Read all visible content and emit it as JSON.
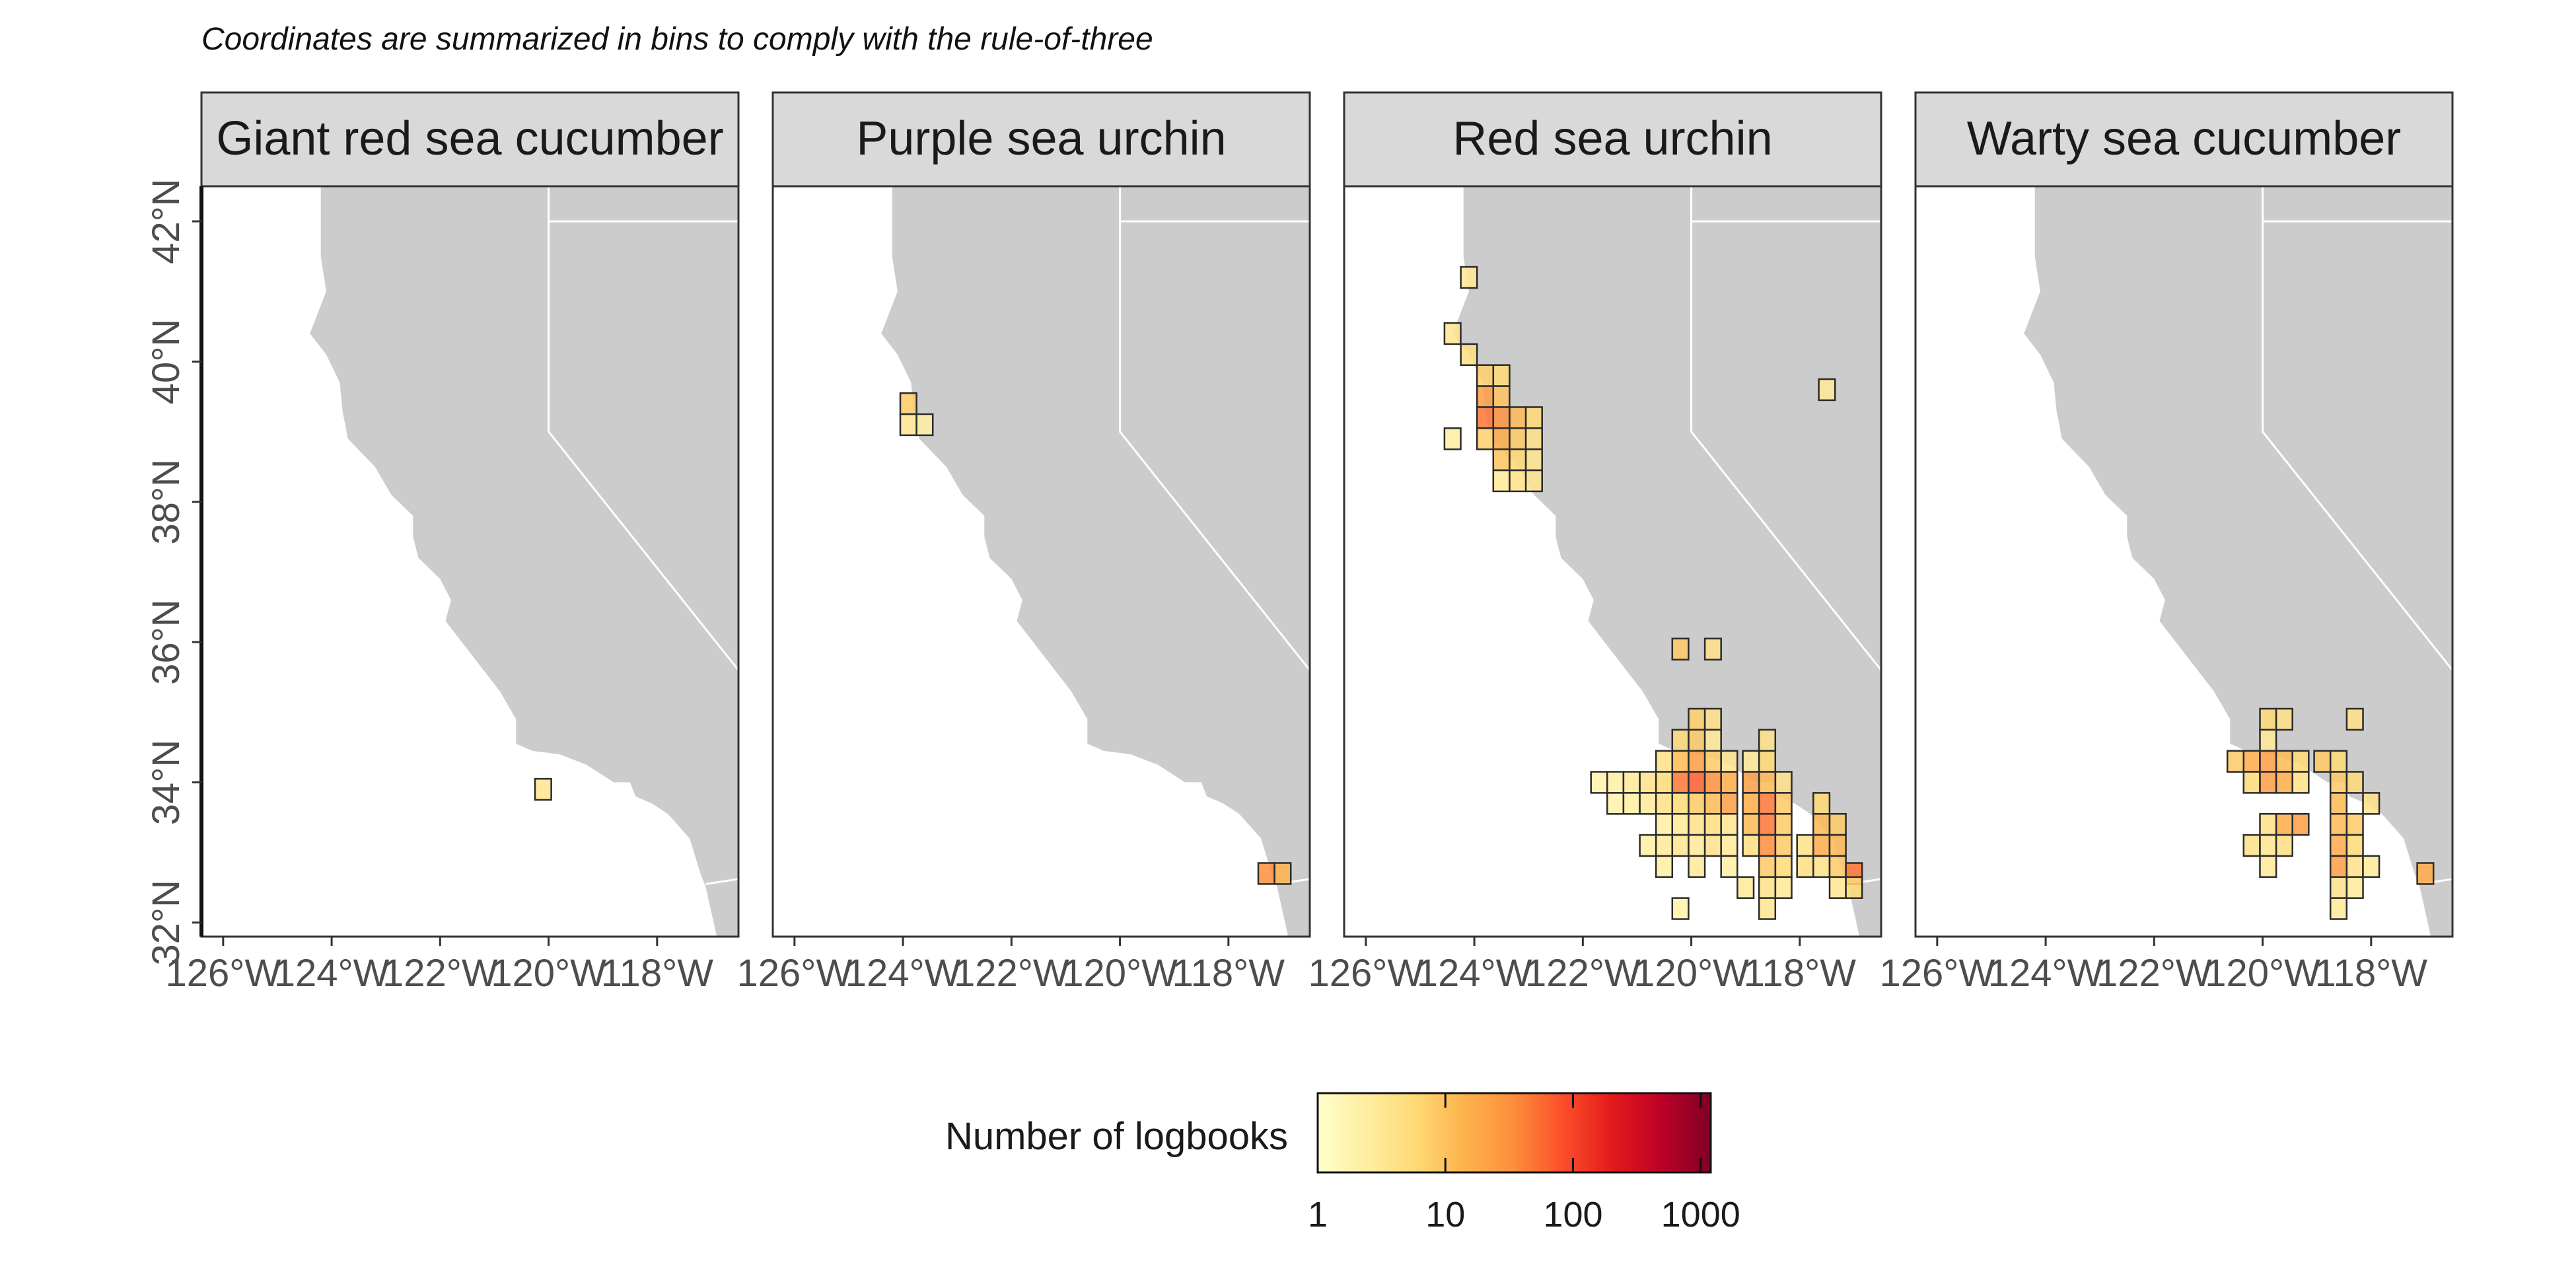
{
  "caption": "Coordinates are summarized in bins to comply with the rule-of-three",
  "panels": [
    {
      "title": "Giant red sea cucumber",
      "cells": [
        {
          "lon": -120.1,
          "lat": 33.9,
          "level": 0.18
        }
      ]
    },
    {
      "title": "Purple sea urchin",
      "cells": [
        {
          "lon": -123.9,
          "lat": 39.4,
          "level": 0.3
        },
        {
          "lon": -123.9,
          "lat": 39.1,
          "level": 0.18
        },
        {
          "lon": -123.6,
          "lat": 39.1,
          "level": 0.12
        },
        {
          "lon": -117.3,
          "lat": 32.7,
          "level": 0.5
        },
        {
          "lon": -117.0,
          "lat": 32.7,
          "level": 0.38
        }
      ]
    },
    {
      "title": "Red sea urchin",
      "cells": [
        {
          "lon": -124.1,
          "lat": 41.2,
          "level": 0.16
        },
        {
          "lon": -124.4,
          "lat": 40.4,
          "level": 0.18
        },
        {
          "lon": -124.1,
          "lat": 40.1,
          "level": 0.22
        },
        {
          "lon": -123.8,
          "lat": 39.8,
          "level": 0.28
        },
        {
          "lon": -123.5,
          "lat": 39.8,
          "level": 0.25
        },
        {
          "lon": -123.8,
          "lat": 39.5,
          "level": 0.45
        },
        {
          "lon": -123.5,
          "lat": 39.5,
          "level": 0.32
        },
        {
          "lon": -123.8,
          "lat": 39.2,
          "level": 0.55
        },
        {
          "lon": -123.5,
          "lat": 39.2,
          "level": 0.48
        },
        {
          "lon": -123.2,
          "lat": 39.2,
          "level": 0.35
        },
        {
          "lon": -122.9,
          "lat": 39.2,
          "level": 0.25
        },
        {
          "lon": -123.5,
          "lat": 38.9,
          "level": 0.4
        },
        {
          "lon": -123.2,
          "lat": 38.9,
          "level": 0.3
        },
        {
          "lon": -122.9,
          "lat": 38.9,
          "level": 0.2
        },
        {
          "lon": -124.4,
          "lat": 38.9,
          "level": 0.12
        },
        {
          "lon": -123.8,
          "lat": 38.9,
          "level": 0.28
        },
        {
          "lon": -123.5,
          "lat": 38.6,
          "level": 0.32
        },
        {
          "lon": -123.2,
          "lat": 38.6,
          "level": 0.25
        },
        {
          "lon": -122.9,
          "lat": 38.6,
          "level": 0.18
        },
        {
          "lon": -123.5,
          "lat": 38.3,
          "level": 0.15
        },
        {
          "lon": -123.2,
          "lat": 38.3,
          "level": 0.2
        },
        {
          "lon": -122.9,
          "lat": 38.3,
          "level": 0.18
        },
        {
          "lon": -117.5,
          "lat": 39.6,
          "level": 0.15
        },
        {
          "lon": -120.2,
          "lat": 35.9,
          "level": 0.3
        },
        {
          "lon": -119.6,
          "lat": 35.9,
          "level": 0.2
        },
        {
          "lon": -119.9,
          "lat": 34.9,
          "level": 0.28
        },
        {
          "lon": -119.6,
          "lat": 34.9,
          "level": 0.2
        },
        {
          "lon": -120.2,
          "lat": 34.6,
          "level": 0.25
        },
        {
          "lon": -119.9,
          "lat": 34.6,
          "level": 0.3
        },
        {
          "lon": -119.6,
          "lat": 34.6,
          "level": 0.15
        },
        {
          "lon": -118.6,
          "lat": 34.6,
          "level": 0.2
        },
        {
          "lon": -120.5,
          "lat": 34.3,
          "level": 0.2
        },
        {
          "lon": -120.2,
          "lat": 34.3,
          "level": 0.35
        },
        {
          "lon": -119.9,
          "lat": 34.3,
          "level": 0.45
        },
        {
          "lon": -119.6,
          "lat": 34.3,
          "level": 0.3
        },
        {
          "lon": -119.3,
          "lat": 34.3,
          "level": 0.18
        },
        {
          "lon": -118.9,
          "lat": 34.3,
          "level": 0.15
        },
        {
          "lon": -118.6,
          "lat": 34.3,
          "level": 0.25
        },
        {
          "lon": -121.7,
          "lat": 34.0,
          "level": 0.1
        },
        {
          "lon": -121.4,
          "lat": 34.0,
          "level": 0.12
        },
        {
          "lon": -121.1,
          "lat": 34.0,
          "level": 0.15
        },
        {
          "lon": -120.8,
          "lat": 34.0,
          "level": 0.2
        },
        {
          "lon": -120.5,
          "lat": 34.0,
          "level": 0.25
        },
        {
          "lon": -120.2,
          "lat": 34.0,
          "level": 0.55
        },
        {
          "lon": -119.9,
          "lat": 34.0,
          "level": 0.6
        },
        {
          "lon": -119.6,
          "lat": 34.0,
          "level": 0.5
        },
        {
          "lon": -119.3,
          "lat": 34.0,
          "level": 0.4
        },
        {
          "lon": -118.9,
          "lat": 34.0,
          "level": 0.45
        },
        {
          "lon": -118.6,
          "lat": 34.0,
          "level": 0.35
        },
        {
          "lon": -118.3,
          "lat": 34.0,
          "level": 0.2
        },
        {
          "lon": -121.4,
          "lat": 33.7,
          "level": 0.1
        },
        {
          "lon": -121.1,
          "lat": 33.7,
          "level": 0.12
        },
        {
          "lon": -120.8,
          "lat": 33.7,
          "level": 0.15
        },
        {
          "lon": -120.5,
          "lat": 33.7,
          "level": 0.2
        },
        {
          "lon": -120.2,
          "lat": 33.7,
          "level": 0.25
        },
        {
          "lon": -119.9,
          "lat": 33.7,
          "level": 0.3
        },
        {
          "lon": -119.6,
          "lat": 33.7,
          "level": 0.35
        },
        {
          "lon": -119.3,
          "lat": 33.7,
          "level": 0.45
        },
        {
          "lon": -118.9,
          "lat": 33.7,
          "level": 0.4
        },
        {
          "lon": -118.6,
          "lat": 33.7,
          "level": 0.55
        },
        {
          "lon": -118.3,
          "lat": 33.7,
          "level": 0.3
        },
        {
          "lon": -120.5,
          "lat": 33.4,
          "level": 0.12
        },
        {
          "lon": -120.2,
          "lat": 33.4,
          "level": 0.15
        },
        {
          "lon": -119.9,
          "lat": 33.4,
          "level": 0.2
        },
        {
          "lon": -119.6,
          "lat": 33.4,
          "level": 0.22
        },
        {
          "lon": -119.3,
          "lat": 33.4,
          "level": 0.18
        },
        {
          "lon": -118.9,
          "lat": 33.4,
          "level": 0.35
        },
        {
          "lon": -118.6,
          "lat": 33.4,
          "level": 0.55
        },
        {
          "lon": -118.3,
          "lat": 33.4,
          "level": 0.3
        },
        {
          "lon": -117.6,
          "lat": 33.7,
          "level": 0.25
        },
        {
          "lon": -117.6,
          "lat": 33.4,
          "level": 0.35
        },
        {
          "lon": -117.3,
          "lat": 33.4,
          "level": 0.3
        },
        {
          "lon": -120.8,
          "lat": 33.1,
          "level": 0.12
        },
        {
          "lon": -120.5,
          "lat": 33.1,
          "level": 0.15
        },
        {
          "lon": -120.2,
          "lat": 33.1,
          "level": 0.18
        },
        {
          "lon": -119.9,
          "lat": 33.1,
          "level": 0.15
        },
        {
          "lon": -119.6,
          "lat": 33.1,
          "level": 0.2
        },
        {
          "lon": -119.3,
          "lat": 33.1,
          "level": 0.15
        },
        {
          "lon": -118.9,
          "lat": 33.1,
          "level": 0.22
        },
        {
          "lon": -118.6,
          "lat": 33.1,
          "level": 0.5
        },
        {
          "lon": -118.3,
          "lat": 33.1,
          "level": 0.3
        },
        {
          "lon": -117.9,
          "lat": 33.1,
          "level": 0.2
        },
        {
          "lon": -117.6,
          "lat": 33.1,
          "level": 0.4
        },
        {
          "lon": -117.3,
          "lat": 33.1,
          "level": 0.35
        },
        {
          "lon": -120.5,
          "lat": 32.8,
          "level": 0.12
        },
        {
          "lon": -119.9,
          "lat": 32.8,
          "level": 0.15
        },
        {
          "lon": -119.3,
          "lat": 32.8,
          "level": 0.12
        },
        {
          "lon": -118.6,
          "lat": 32.8,
          "level": 0.3
        },
        {
          "lon": -118.3,
          "lat": 32.8,
          "level": 0.25
        },
        {
          "lon": -117.9,
          "lat": 32.8,
          "level": 0.22
        },
        {
          "lon": -117.6,
          "lat": 32.8,
          "level": 0.2
        },
        {
          "lon": -117.3,
          "lat": 32.8,
          "level": 0.3
        },
        {
          "lon": -117.0,
          "lat": 32.7,
          "level": 0.55
        },
        {
          "lon": -117.3,
          "lat": 32.5,
          "level": 0.18
        },
        {
          "lon": -117.0,
          "lat": 32.5,
          "level": 0.25
        },
        {
          "lon": -119.0,
          "lat": 32.5,
          "level": 0.15
        },
        {
          "lon": -118.6,
          "lat": 32.5,
          "level": 0.2
        },
        {
          "lon": -118.3,
          "lat": 32.5,
          "level": 0.15
        },
        {
          "lon": -118.6,
          "lat": 32.2,
          "level": 0.18
        },
        {
          "lon": -120.2,
          "lat": 32.2,
          "level": 0.1
        }
      ]
    },
    {
      "title": "Warty sea cucumber",
      "cells": [
        {
          "lon": -119.9,
          "lat": 34.9,
          "level": 0.25
        },
        {
          "lon": -119.6,
          "lat": 34.9,
          "level": 0.2
        },
        {
          "lon": -118.3,
          "lat": 34.9,
          "level": 0.2
        },
        {
          "lon": -119.9,
          "lat": 34.6,
          "level": 0.15
        },
        {
          "lon": -120.5,
          "lat": 34.3,
          "level": 0.3
        },
        {
          "lon": -120.2,
          "lat": 34.3,
          "level": 0.4
        },
        {
          "lon": -119.9,
          "lat": 34.3,
          "level": 0.45
        },
        {
          "lon": -119.6,
          "lat": 34.3,
          "level": 0.35
        },
        {
          "lon": -119.3,
          "lat": 34.3,
          "level": 0.25
        },
        {
          "lon": -118.9,
          "lat": 34.3,
          "level": 0.3
        },
        {
          "lon": -118.6,
          "lat": 34.3,
          "level": 0.25
        },
        {
          "lon": -120.2,
          "lat": 34.0,
          "level": 0.25
        },
        {
          "lon": -119.9,
          "lat": 34.0,
          "level": 0.45
        },
        {
          "lon": -119.6,
          "lat": 34.0,
          "level": 0.4
        },
        {
          "lon": -119.3,
          "lat": 34.0,
          "level": 0.2
        },
        {
          "lon": -118.6,
          "lat": 34.0,
          "level": 0.3
        },
        {
          "lon": -118.3,
          "lat": 34.0,
          "level": 0.25
        },
        {
          "lon": -118.6,
          "lat": 33.7,
          "level": 0.35
        },
        {
          "lon": -118.0,
          "lat": 33.7,
          "level": 0.2
        },
        {
          "lon": -119.9,
          "lat": 33.4,
          "level": 0.2
        },
        {
          "lon": -119.6,
          "lat": 33.4,
          "level": 0.4
        },
        {
          "lon": -119.3,
          "lat": 33.4,
          "level": 0.45
        },
        {
          "lon": -118.6,
          "lat": 33.4,
          "level": 0.35
        },
        {
          "lon": -118.3,
          "lat": 33.4,
          "level": 0.3
        },
        {
          "lon": -120.2,
          "lat": 33.1,
          "level": 0.2
        },
        {
          "lon": -119.9,
          "lat": 33.1,
          "level": 0.18
        },
        {
          "lon": -119.6,
          "lat": 33.1,
          "level": 0.22
        },
        {
          "lon": -118.6,
          "lat": 33.1,
          "level": 0.4
        },
        {
          "lon": -118.3,
          "lat": 33.1,
          "level": 0.25
        },
        {
          "lon": -119.9,
          "lat": 32.8,
          "level": 0.15
        },
        {
          "lon": -118.6,
          "lat": 32.8,
          "level": 0.45
        },
        {
          "lon": -118.3,
          "lat": 32.8,
          "level": 0.2
        },
        {
          "lon": -118.0,
          "lat": 32.8,
          "level": 0.15
        },
        {
          "lon": -118.6,
          "lat": 32.5,
          "level": 0.2
        },
        {
          "lon": -118.3,
          "lat": 32.5,
          "level": 0.15
        },
        {
          "lon": -118.6,
          "lat": 32.2,
          "level": 0.15
        },
        {
          "lon": -117.0,
          "lat": 32.7,
          "level": 0.4
        }
      ]
    }
  ],
  "x_ticks": [
    {
      "value": -126,
      "label": "126°W"
    },
    {
      "value": -124,
      "label": "124°W"
    },
    {
      "value": -122,
      "label": "122°W"
    },
    {
      "value": -120,
      "label": "120°W"
    },
    {
      "value": -118,
      "label": "118°W"
    }
  ],
  "y_ticks": [
    {
      "value": 32,
      "label": "32°N"
    },
    {
      "value": 34,
      "label": "34°N"
    },
    {
      "value": 36,
      "label": "36°N"
    },
    {
      "value": 38,
      "label": "38°N"
    },
    {
      "value": 40,
      "label": "40°N"
    },
    {
      "value": 42,
      "label": "42°N"
    }
  ],
  "axis_range": {
    "lon": [
      -126.4,
      -116.5
    ],
    "lat": [
      31.8,
      42.5
    ]
  },
  "legend": {
    "title": "Number of logbooks",
    "scale": "log10",
    "ticks": [
      {
        "value": 1,
        "label": "1"
      },
      {
        "value": 10,
        "label": "10"
      },
      {
        "value": 100,
        "label": "100"
      },
      {
        "value": 1000,
        "label": "1000"
      }
    ],
    "range": [
      1,
      1200
    ],
    "colors": [
      "#ffffcc",
      "#ffeda0",
      "#fed976",
      "#feb24c",
      "#fd8d3c",
      "#fc4e2a",
      "#e31a1c",
      "#bd0026",
      "#800026"
    ]
  },
  "colors": {
    "land": "#cccccc",
    "strip": "#d9d9d9",
    "border": "#333333"
  }
}
